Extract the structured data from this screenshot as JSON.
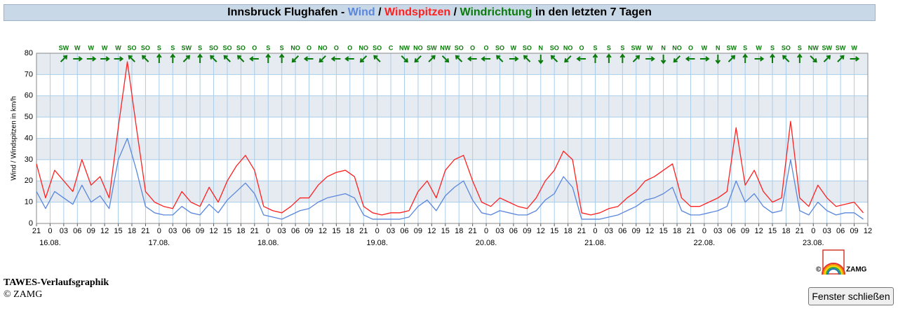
{
  "chart_data": {
    "type": "line",
    "title_parts": [
      "Innsbruck Flughafen -",
      "/",
      "/",
      "Windrichtung",
      "in den letzten 7 Tagen"
    ],
    "y_label": "Wind / Windspitzen in km/h",
    "x": [
      0,
      2,
      4,
      6,
      8,
      10,
      12,
      14,
      16,
      18,
      20,
      22,
      24,
      26,
      28,
      30,
      32,
      34,
      36,
      38,
      40,
      42,
      44,
      46,
      48,
      50,
      52,
      54,
      56,
      58,
      60,
      62,
      64,
      66,
      68,
      70,
      72,
      74,
      76,
      78,
      80,
      82,
      84,
      86,
      88,
      90,
      92,
      94,
      96,
      98,
      100,
      102,
      104,
      106,
      108,
      110,
      112,
      114,
      116,
      118,
      120,
      122,
      124,
      126,
      128,
      130,
      132,
      134,
      136,
      138,
      140,
      142,
      144,
      146,
      148,
      150,
      152,
      154,
      156,
      158,
      160,
      162,
      164,
      166,
      168,
      170,
      172,
      174,
      176,
      178,
      180,
      182
    ],
    "series": [
      {
        "name": "Windspitzen",
        "color": "#ff2020",
        "values": [
          28,
          12,
          25,
          20,
          15,
          30,
          18,
          22,
          12,
          45,
          76,
          45,
          15,
          10,
          8,
          7,
          15,
          10,
          8,
          17,
          10,
          20,
          27,
          32,
          25,
          8,
          6,
          5,
          8,
          12,
          12,
          18,
          22,
          24,
          25,
          22,
          8,
          5,
          4,
          5,
          5,
          6,
          15,
          20,
          12,
          25,
          30,
          32,
          20,
          10,
          8,
          12,
          10,
          8,
          7,
          12,
          20,
          25,
          34,
          30,
          5,
          4,
          5,
          7,
          8,
          12,
          15,
          20,
          22,
          25,
          28,
          12,
          8,
          8,
          10,
          12,
          15,
          45,
          18,
          25,
          15,
          10,
          12,
          48,
          12,
          8,
          18,
          12,
          8,
          9,
          10,
          5
        ]
      },
      {
        "name": "Wind",
        "color": "#5a87dc",
        "values": [
          15,
          7,
          15,
          12,
          9,
          18,
          10,
          13,
          7,
          30,
          40,
          25,
          8,
          5,
          4,
          4,
          8,
          5,
          4,
          9,
          5,
          11,
          15,
          19,
          14,
          4,
          3,
          2,
          4,
          6,
          7,
          10,
          12,
          13,
          14,
          12,
          4,
          2,
          2,
          2,
          2,
          3,
          8,
          11,
          6,
          13,
          17,
          20,
          11,
          5,
          4,
          6,
          5,
          4,
          4,
          6,
          11,
          14,
          22,
          17,
          2,
          2,
          2,
          3,
          4,
          6,
          8,
          11,
          12,
          14,
          17,
          6,
          4,
          4,
          5,
          6,
          8,
          20,
          10,
          14,
          8,
          5,
          6,
          30,
          6,
          4,
          10,
          6,
          4,
          5,
          5,
          2
        ]
      }
    ],
    "direction_color": "#0a7a0a",
    "directions": {
      "x": [
        6,
        9,
        12,
        15,
        18,
        21,
        24,
        27,
        30,
        33,
        36,
        39,
        42,
        45,
        48,
        51,
        54,
        57,
        60,
        63,
        66,
        69,
        72,
        75,
        78,
        81,
        84,
        87,
        90,
        93,
        96,
        99,
        102,
        105,
        108,
        111,
        114,
        117,
        120,
        123,
        126,
        129,
        132,
        135,
        138,
        141,
        144,
        147,
        150,
        153,
        156,
        159,
        162,
        165,
        168,
        171,
        174,
        177,
        180
      ],
      "labels": [
        "SW",
        "W",
        "W",
        "W",
        "W",
        "SO",
        "SO",
        "S",
        "S",
        "SW",
        "S",
        "SO",
        "SO",
        "SO",
        "O",
        "S",
        "S",
        "NO",
        "O",
        "NO",
        "O",
        "O",
        "NO",
        "SO",
        "C",
        "NW",
        "NO",
        "SW",
        "NW",
        "SO",
        "O",
        "O",
        "SO",
        "W",
        "SO",
        "N",
        "SO",
        "NO",
        "O",
        "S",
        "S",
        "S",
        "SW",
        "W",
        "N",
        "NO",
        "O",
        "W",
        "N",
        "SW",
        "S",
        "W",
        "S",
        "SO",
        "S",
        "NW",
        "SW",
        "SW",
        "W"
      ],
      "degrees": [
        225,
        270,
        270,
        270,
        270,
        135,
        135,
        180,
        180,
        225,
        180,
        135,
        135,
        135,
        90,
        180,
        180,
        45,
        90,
        45,
        90,
        90,
        45,
        135,
        null,
        315,
        45,
        225,
        315,
        135,
        90,
        90,
        135,
        270,
        135,
        0,
        135,
        45,
        90,
        180,
        180,
        180,
        225,
        270,
        0,
        45,
        90,
        270,
        0,
        225,
        180,
        270,
        180,
        135,
        180,
        315,
        225,
        225,
        270
      ]
    },
    "xlim": [
      0,
      183
    ],
    "xticks": [
      {
        "value": 0,
        "label": "21"
      },
      {
        "value": 3,
        "label": "0"
      },
      {
        "value": 6,
        "label": "03"
      },
      {
        "value": 9,
        "label": "06"
      },
      {
        "value": 12,
        "label": "09"
      },
      {
        "value": 15,
        "label": "12"
      },
      {
        "value": 18,
        "label": "15"
      },
      {
        "value": 21,
        "label": "18"
      },
      {
        "value": 24,
        "label": "21"
      },
      {
        "value": 27,
        "label": "0"
      },
      {
        "value": 30,
        "label": "03"
      },
      {
        "value": 33,
        "label": "06"
      },
      {
        "value": 36,
        "label": "09"
      },
      {
        "value": 39,
        "label": "12"
      },
      {
        "value": 42,
        "label": "15"
      },
      {
        "value": 45,
        "label": "18"
      },
      {
        "value": 48,
        "label": "21"
      },
      {
        "value": 51,
        "label": "0"
      },
      {
        "value": 54,
        "label": "03"
      },
      {
        "value": 57,
        "label": "06"
      },
      {
        "value": 60,
        "label": "09"
      },
      {
        "value": 63,
        "label": "12"
      },
      {
        "value": 66,
        "label": "15"
      },
      {
        "value": 69,
        "label": "18"
      },
      {
        "value": 72,
        "label": "21"
      },
      {
        "value": 75,
        "label": "0"
      },
      {
        "value": 78,
        "label": "03"
      },
      {
        "value": 81,
        "label": "06"
      },
      {
        "value": 84,
        "label": "09"
      },
      {
        "value": 87,
        "label": "12"
      },
      {
        "value": 90,
        "label": "15"
      },
      {
        "value": 93,
        "label": "18"
      },
      {
        "value": 96,
        "label": "21"
      },
      {
        "value": 99,
        "label": "0"
      },
      {
        "value": 102,
        "label": "03"
      },
      {
        "value": 105,
        "label": "06"
      },
      {
        "value": 108,
        "label": "09"
      },
      {
        "value": 111,
        "label": "12"
      },
      {
        "value": 114,
        "label": "15"
      },
      {
        "value": 117,
        "label": "18"
      },
      {
        "value": 120,
        "label": "21"
      },
      {
        "value": 123,
        "label": "0"
      },
      {
        "value": 126,
        "label": "03"
      },
      {
        "value": 129,
        "label": "06"
      },
      {
        "value": 132,
        "label": "09"
      },
      {
        "value": 135,
        "label": "12"
      },
      {
        "value": 138,
        "label": "15"
      },
      {
        "value": 141,
        "label": "18"
      },
      {
        "value": 144,
        "label": "21"
      },
      {
        "value": 147,
        "label": "0"
      },
      {
        "value": 150,
        "label": "03"
      },
      {
        "value": 153,
        "label": "06"
      },
      {
        "value": 156,
        "label": "09"
      },
      {
        "value": 159,
        "label": "12"
      },
      {
        "value": 162,
        "label": "15"
      },
      {
        "value": 165,
        "label": "18"
      },
      {
        "value": 168,
        "label": "21"
      },
      {
        "value": 171,
        "label": "0"
      },
      {
        "value": 174,
        "label": "03"
      },
      {
        "value": 177,
        "label": "06"
      },
      {
        "value": 180,
        "label": "09"
      },
      {
        "value": 183,
        "label": "12"
      }
    ],
    "date_ticks": [
      {
        "value": 3,
        "label": "16.08."
      },
      {
        "value": 27,
        "label": "17.08."
      },
      {
        "value": 51,
        "label": "18.08."
      },
      {
        "value": 75,
        "label": "19.08."
      },
      {
        "value": 99,
        "label": "20.08."
      },
      {
        "value": 123,
        "label": "21.08."
      },
      {
        "value": 147,
        "label": "22.08."
      },
      {
        "value": 171,
        "label": "23.08."
      }
    ],
    "ylim": [
      0,
      80
    ],
    "yticks": [
      0,
      10,
      20,
      30,
      40,
      50,
      60,
      70,
      80
    ],
    "grid": true
  },
  "logo": {
    "copyright": "©",
    "name": "ZAMG"
  },
  "footer": {
    "title": "TAWES-Verlaufsgraphik",
    "copyright": "© ZAMG"
  },
  "button": "Fenster schließen"
}
